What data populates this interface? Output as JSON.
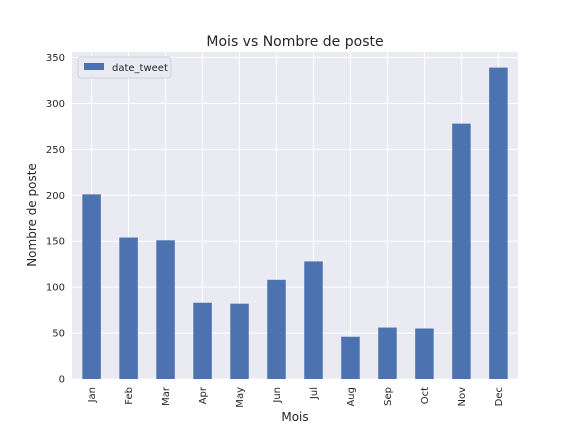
{
  "chart_data": {
    "type": "bar",
    "title": "Mois vs Nombre de poste",
    "xlabel": "Mois",
    "ylabel": "Nombre de poste",
    "categories": [
      "Jan",
      "Feb",
      "Mar",
      "Apr",
      "May",
      "Jun",
      "Jul",
      "Aug",
      "Sep",
      "Oct",
      "Nov",
      "Dec"
    ],
    "series": [
      {
        "name": "date_tweet",
        "values": [
          201,
          154,
          151,
          83,
          82,
          108,
          128,
          46,
          56,
          55,
          278,
          339
        ],
        "color": "#4c72b0"
      }
    ],
    "yticks": [
      0,
      50,
      100,
      150,
      200,
      250,
      300,
      350
    ],
    "ylim": [
      0,
      356
    ],
    "grid": true,
    "legend_position": "upper-left",
    "background": "#eaeaf2"
  }
}
